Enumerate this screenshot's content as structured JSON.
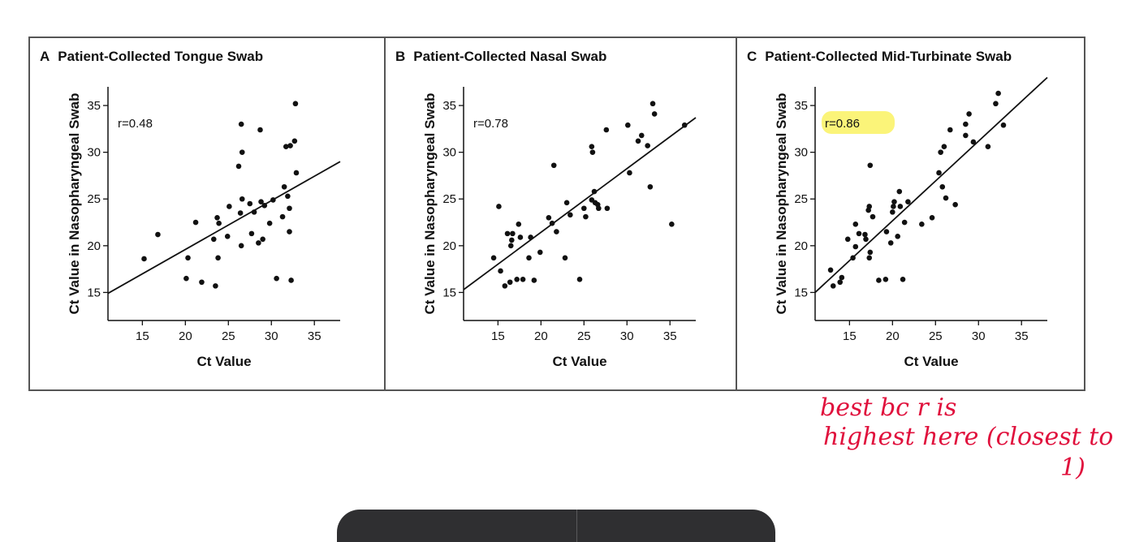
{
  "chart_data": [
    {
      "type": "scatter",
      "panel_letter": "A",
      "title": "Patient-Collected Tongue Swab",
      "xlabel": "Ct Value",
      "ylabel": "Ct Value in Nasopharyngeal Swab",
      "xlim": [
        11,
        38
      ],
      "ylim": [
        12,
        37
      ],
      "xticks": [
        15,
        20,
        25,
        30,
        35
      ],
      "yticks": [
        15,
        20,
        25,
        30,
        35
      ],
      "annotation": "r=0.48",
      "fit_line": [
        [
          11,
          14.9
        ],
        [
          38,
          29.0
        ]
      ],
      "points": [
        [
          15.2,
          18.6
        ],
        [
          16.8,
          21.2
        ],
        [
          20.1,
          16.5
        ],
        [
          20.3,
          18.7
        ],
        [
          21.2,
          22.5
        ],
        [
          21.9,
          16.1
        ],
        [
          23.5,
          15.7
        ],
        [
          23.3,
          20.7
        ],
        [
          23.8,
          18.7
        ],
        [
          23.7,
          23.0
        ],
        [
          23.9,
          22.4
        ],
        [
          24.9,
          21.0
        ],
        [
          25.1,
          24.2
        ],
        [
          26.2,
          28.5
        ],
        [
          26.4,
          23.5
        ],
        [
          26.5,
          20.0
        ],
        [
          26.6,
          25.0
        ],
        [
          26.6,
          30.0
        ],
        [
          26.5,
          33.0
        ],
        [
          27.5,
          24.5
        ],
        [
          27.7,
          21.3
        ],
        [
          28.0,
          23.6
        ],
        [
          28.5,
          20.3
        ],
        [
          28.8,
          24.7
        ],
        [
          28.7,
          32.4
        ],
        [
          29.0,
          20.7
        ],
        [
          29.2,
          24.3
        ],
        [
          29.8,
          22.4
        ],
        [
          30.2,
          24.9
        ],
        [
          30.6,
          16.5
        ],
        [
          31.3,
          23.1
        ],
        [
          31.5,
          26.3
        ],
        [
          31.7,
          30.6
        ],
        [
          31.9,
          25.3
        ],
        [
          32.1,
          21.5
        ],
        [
          32.2,
          30.7
        ],
        [
          32.1,
          24.0
        ],
        [
          32.3,
          16.3
        ],
        [
          32.7,
          31.2
        ],
        [
          32.9,
          27.8
        ],
        [
          32.8,
          35.2
        ]
      ]
    },
    {
      "type": "scatter",
      "panel_letter": "B",
      "title": "Patient-Collected Nasal Swab",
      "xlabel": "Ct Value",
      "ylabel": "Ct Value in Nasopharyngeal Swab",
      "xlim": [
        11,
        38
      ],
      "ylim": [
        12,
        37
      ],
      "xticks": [
        15,
        20,
        25,
        30,
        35
      ],
      "yticks": [
        15,
        20,
        25,
        30,
        35
      ],
      "annotation": "r=0.78",
      "fit_line": [
        [
          11,
          15.3
        ],
        [
          38,
          33.7
        ]
      ],
      "points": [
        [
          14.5,
          18.7
        ],
        [
          15.1,
          24.2
        ],
        [
          15.3,
          17.3
        ],
        [
          15.8,
          15.7
        ],
        [
          16.1,
          21.3
        ],
        [
          16.4,
          16.1
        ],
        [
          16.5,
          20.0
        ],
        [
          16.7,
          21.3
        ],
        [
          16.6,
          20.6
        ],
        [
          17.2,
          16.4
        ],
        [
          17.4,
          22.3
        ],
        [
          17.6,
          20.9
        ],
        [
          17.9,
          16.4
        ],
        [
          18.6,
          18.7
        ],
        [
          18.8,
          20.9
        ],
        [
          19.2,
          16.3
        ],
        [
          19.9,
          19.3
        ],
        [
          20.9,
          23.0
        ],
        [
          21.3,
          22.4
        ],
        [
          21.5,
          28.6
        ],
        [
          21.8,
          21.5
        ],
        [
          22.8,
          18.7
        ],
        [
          23.0,
          24.6
        ],
        [
          23.4,
          23.3
        ],
        [
          24.5,
          16.4
        ],
        [
          25.0,
          24.0
        ],
        [
          25.2,
          23.1
        ],
        [
          25.9,
          30.6
        ],
        [
          26.0,
          30.0
        ],
        [
          25.9,
          24.9
        ],
        [
          26.2,
          25.8
        ],
        [
          26.3,
          24.6
        ],
        [
          26.6,
          24.4
        ],
        [
          26.7,
          24.0
        ],
        [
          27.6,
          32.4
        ],
        [
          27.7,
          24.0
        ],
        [
          30.1,
          32.9
        ],
        [
          30.3,
          27.8
        ],
        [
          31.3,
          31.2
        ],
        [
          31.7,
          31.8
        ],
        [
          32.4,
          30.7
        ],
        [
          32.7,
          26.3
        ],
        [
          33.0,
          35.2
        ],
        [
          33.2,
          34.1
        ],
        [
          35.2,
          22.3
        ],
        [
          36.7,
          32.9
        ]
      ]
    },
    {
      "type": "scatter",
      "panel_letter": "C",
      "title": "Patient-Collected Mid-Turbinate Swab",
      "xlabel": "Ct Value",
      "ylabel": "Ct Value in Nasopharyngeal Swab",
      "xlim": [
        11,
        38
      ],
      "ylim": [
        12,
        37
      ],
      "xticks": [
        15,
        20,
        25,
        30,
        35
      ],
      "yticks": [
        15,
        20,
        25,
        30,
        35
      ],
      "annotation": "r=0.86",
      "annotation_highlight": "#fbf36a",
      "fit_line": [
        [
          11,
          15.0
        ],
        [
          38,
          38.0
        ]
      ],
      "points": [
        [
          12.8,
          17.4
        ],
        [
          13.1,
          15.7
        ],
        [
          13.9,
          16.1
        ],
        [
          14.1,
          16.6
        ],
        [
          14.8,
          20.7
        ],
        [
          15.4,
          18.7
        ],
        [
          15.7,
          19.9
        ],
        [
          15.7,
          22.3
        ],
        [
          16.1,
          21.3
        ],
        [
          16.8,
          21.2
        ],
        [
          16.9,
          20.7
        ],
        [
          17.2,
          23.8
        ],
        [
          17.3,
          24.2
        ],
        [
          17.3,
          18.7
        ],
        [
          17.4,
          19.3
        ],
        [
          17.4,
          28.6
        ],
        [
          17.7,
          23.1
        ],
        [
          18.4,
          16.3
        ],
        [
          19.2,
          16.4
        ],
        [
          19.3,
          21.5
        ],
        [
          19.8,
          20.3
        ],
        [
          20.0,
          23.6
        ],
        [
          20.1,
          24.2
        ],
        [
          20.2,
          24.7
        ],
        [
          20.6,
          21.0
        ],
        [
          20.8,
          25.8
        ],
        [
          20.9,
          24.2
        ],
        [
          21.2,
          16.4
        ],
        [
          21.4,
          22.5
        ],
        [
          21.8,
          24.7
        ],
        [
          23.4,
          22.3
        ],
        [
          24.6,
          23.0
        ],
        [
          25.4,
          27.8
        ],
        [
          25.6,
          30.0
        ],
        [
          25.8,
          26.3
        ],
        [
          26.0,
          30.6
        ],
        [
          26.2,
          25.1
        ],
        [
          26.7,
          32.4
        ],
        [
          27.3,
          24.4
        ],
        [
          28.5,
          31.8
        ],
        [
          28.5,
          33.0
        ],
        [
          28.9,
          34.1
        ],
        [
          29.4,
          31.1
        ],
        [
          31.1,
          30.6
        ],
        [
          32.0,
          35.2
        ],
        [
          32.3,
          36.3
        ],
        [
          32.9,
          32.9
        ]
      ]
    }
  ],
  "handwritten_note": {
    "line1": "best bc r is",
    "line2": "highest here (closest to",
    "line3": "1)",
    "color": "#e0103c"
  },
  "colors": {
    "frame": "#555555",
    "axis": "#111111",
    "highlight": "#fbf36a",
    "bottom_bar": "#2f2f31"
  }
}
